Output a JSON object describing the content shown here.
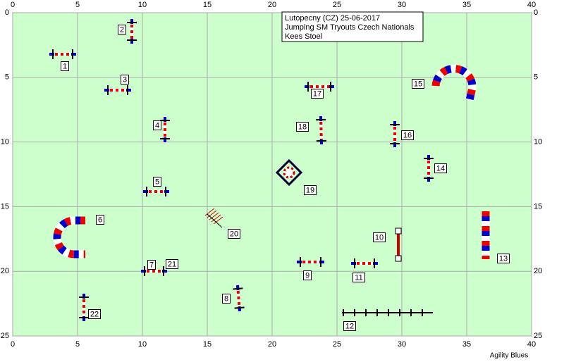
{
  "course": {
    "title_lines": [
      "Lutopecny (CZ) 25-06-2017",
      "Jumping SM Tryouts Czech Nationals",
      "Kees Stoel"
    ],
    "x_ticks": [
      0,
      5,
      10,
      15,
      20,
      25,
      30,
      35,
      40
    ],
    "y_ticks": [
      0,
      5,
      10,
      15,
      20,
      25
    ],
    "obstacles": [
      "1",
      "2",
      "3",
      "4",
      "5",
      "6",
      "7",
      "8",
      "9",
      "10",
      "11",
      "12",
      "13",
      "14",
      "15",
      "16",
      "17",
      "18",
      "19",
      "20",
      "21",
      "22"
    ],
    "footer": "Agility Blues"
  }
}
